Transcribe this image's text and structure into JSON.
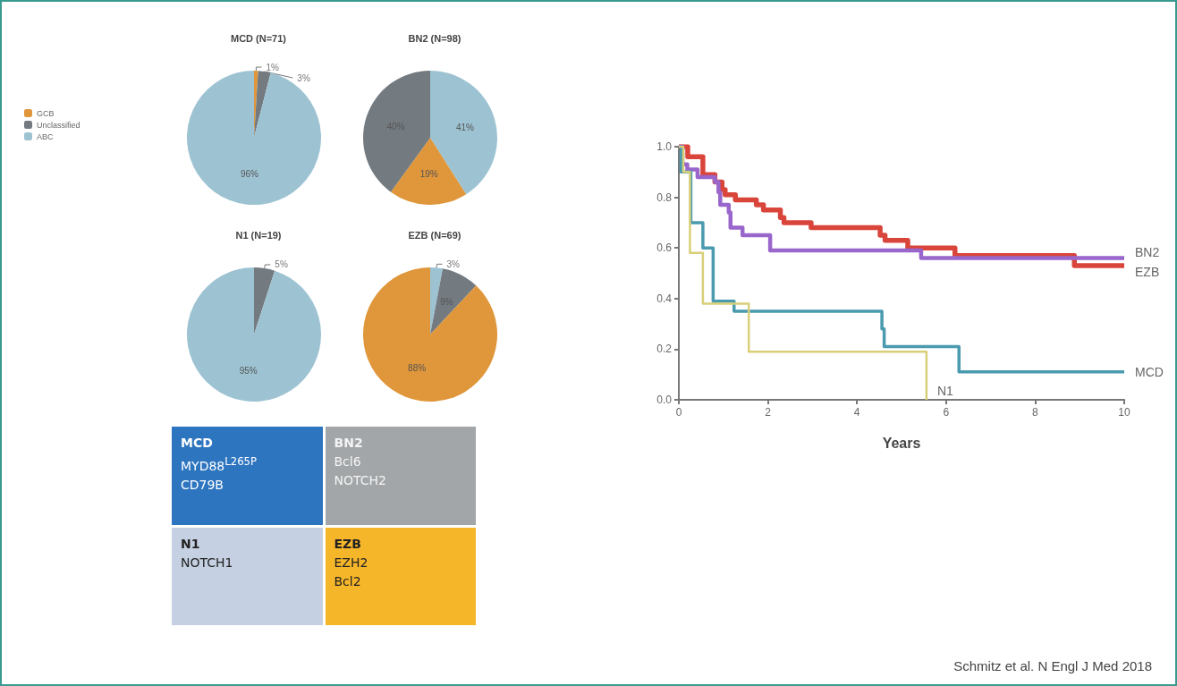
{
  "chart_data": [
    {
      "type": "pie",
      "title": "MCD (N=71)",
      "categories": [
        "GCB",
        "Unclassified",
        "ABC"
      ],
      "values": [
        1,
        3,
        96
      ],
      "value_labels": [
        "1%",
        "3%",
        "96%"
      ],
      "colors": [
        "#e0963a",
        "#737a80",
        "#9dc3d3"
      ],
      "legend": "left"
    },
    {
      "type": "pie",
      "title": "BN2 (N=98)",
      "categories": [
        null,
        null,
        null
      ],
      "values": [
        41,
        19,
        40
      ],
      "value_labels": [
        "41%",
        "19%",
        "40%"
      ],
      "colors": [
        "#9dc3d3",
        "#e0963a",
        "#737a80"
      ]
    },
    {
      "type": "pie",
      "title": "N1 (N=19)",
      "categories": [
        null,
        null
      ],
      "values": [
        5,
        95
      ],
      "value_labels": [
        "5%",
        "95%"
      ],
      "colors": [
        "#737a80",
        "#9dc3d3"
      ]
    },
    {
      "type": "pie",
      "title": "EZB (N=69)",
      "categories": [
        null,
        null,
        null
      ],
      "values": [
        3,
        9,
        88
      ],
      "value_labels": [
        "3%",
        "9%",
        "88%"
      ],
      "colors": [
        "#9dc3d3",
        "#737a80",
        "#e0963a"
      ]
    },
    {
      "type": "other",
      "annotations": [
        "MCD\nMYD88$^{L265P}$\nCD79B",
        "BN2\nBcl6\nNOTCH2",
        "N1\nNOTCH1",
        "EZB\nEZH2\nBcl2"
      ]
    },
    {
      "type": "step",
      "xlabel": "Years",
      "xlim": [
        0,
        10
      ],
      "xticks": [
        0,
        2,
        4,
        6,
        8,
        10
      ],
      "ylim": [
        0,
        1
      ],
      "yticks": [
        {
          "value": 0,
          "label": "0.0"
        },
        {
          "value": 0.2,
          "label": "0.2"
        },
        {
          "value": 0.4,
          "label": "0.4"
        },
        {
          "value": 0.6,
          "label": "0.6"
        },
        {
          "value": 0.8,
          "label": "0.8"
        },
        {
          "value": 1,
          "label": "1.0"
        }
      ],
      "grid": false,
      "legend": false,
      "marker": "none",
      "series": [
        {
          "name": "EZB",
          "color": "#d9453b",
          "x": [
            0,
            0.2,
            0.54,
            0.81,
            0.97,
            1.04,
            1.27,
            1.74,
            1.9,
            2.28,
            2.36,
            2.97,
            4.52,
            4.63,
            5.14,
            6.2,
            8.88,
            10
          ],
          "values": [
            1,
            0.96,
            0.89,
            0.86,
            0.83,
            0.81,
            0.79,
            0.77,
            0.75,
            0.72,
            0.7,
            0.68,
            0.65,
            0.63,
            0.6,
            0.57,
            0.53,
            0.53
          ]
        },
        {
          "name": "BN2",
          "color": "#9966cc",
          "x": [
            0,
            0.08,
            0.19,
            0.42,
            0.81,
            0.89,
            0.93,
            1.12,
            1.16,
            1.43,
            2.05,
            5.44,
            10
          ],
          "values": [
            1,
            0.93,
            0.91,
            0.88,
            0.86,
            0.82,
            0.77,
            0.74,
            0.68,
            0.65,
            0.59,
            0.56,
            0.56
          ]
        },
        {
          "name": "MCD",
          "color": "#4a9ab0",
          "x": [
            0,
            0.05,
            0.27,
            0.54,
            0.77,
            1.24,
            4.56,
            4.61,
            6.29,
            10
          ],
          "values": [
            1,
            0.9,
            0.7,
            0.6,
            0.39,
            0.35,
            0.28,
            0.21,
            0.11,
            0.11
          ]
        },
        {
          "name": "N1",
          "color": "#d8cf78",
          "x": [
            0,
            0.1,
            0.25,
            0.54,
            1.57,
            5.56
          ],
          "values": [
            1,
            0.9,
            0.58,
            0.38,
            0.19,
            0
          ]
        }
      ],
      "annotations": [
        "Schmitz et al. N Engl J Med 2018"
      ]
    }
  ]
}
